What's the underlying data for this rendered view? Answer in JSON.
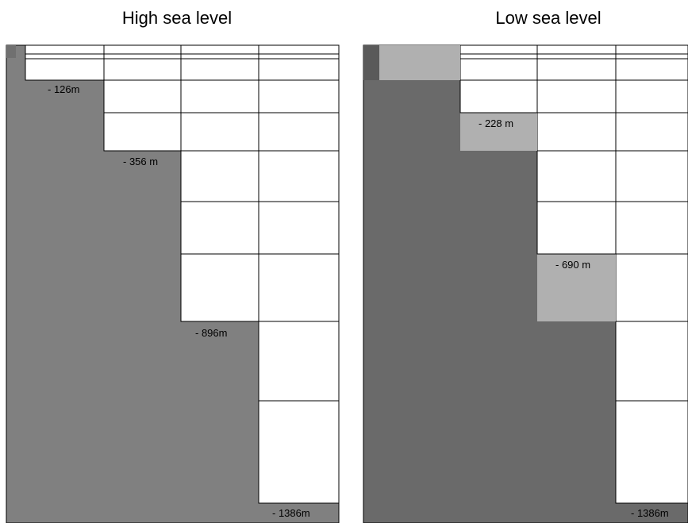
{
  "panels": [
    {
      "title": "High sea level",
      "depth_labels": [
        "- 126m",
        "- 356 m",
        "- 896m",
        "- 1386m"
      ]
    },
    {
      "title": "Low sea level",
      "depth_labels": [
        "- 228 m",
        "- 690 m",
        "- 1386m"
      ]
    }
  ],
  "colors": {
    "rock_high": "#808080",
    "rock_low": "#6a6a6a",
    "rock_edge": "#555555",
    "highlight": "#b0b0b0",
    "grid": "#000000"
  }
}
